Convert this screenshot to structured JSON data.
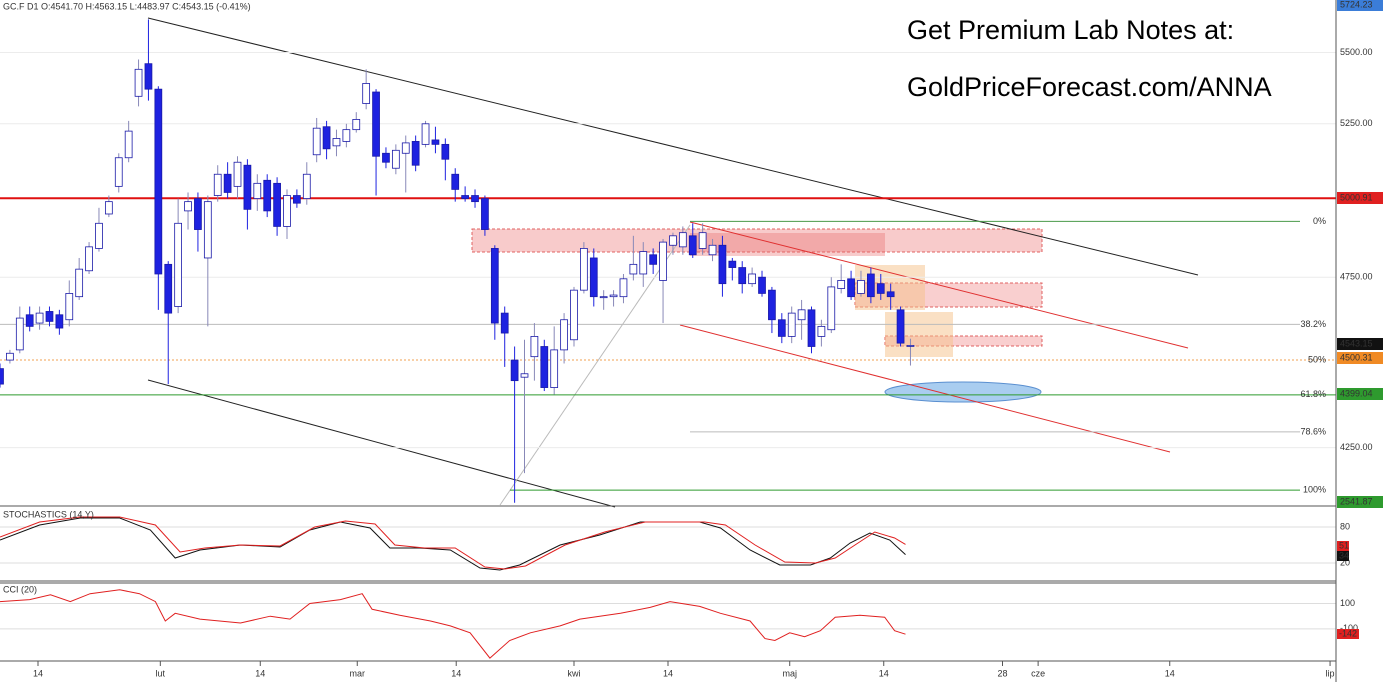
{
  "header": "GC.F  D1  O:4541.70  H:4563.15  L:4483.97  C:4543.15 (-0.41%)",
  "promo": [
    "Get Premium Lab Notes at:",
    "GoldPriceForecast.com/ANNA"
  ],
  "chart_data": [
    {
      "type": "candlestick",
      "log_scale": true,
      "grid": true,
      "up_color": "#ffffff",
      "down_color": "#1e22e0",
      "edge_color": "#1a1aa8",
      "ylim": [
        4094,
        5662
      ],
      "yticks": [
        {
          "value": 5500,
          "label": "5500.00"
        },
        {
          "value": 5250,
          "label": "5250.00"
        },
        {
          "value": 4750,
          "label": "4750.00"
        },
        {
          "value": 4250,
          "label": "4250.00"
        }
      ],
      "xlim": [
        0,
        135
      ],
      "xticks": [
        {
          "value": 3.84,
          "label": "14"
        },
        {
          "value": 16.2,
          "label": "lut"
        },
        {
          "value": 26.3,
          "label": "14"
        },
        {
          "value": 36.1,
          "label": "mar"
        },
        {
          "value": 46.1,
          "label": "14"
        },
        {
          "value": 58,
          "label": "kwi"
        },
        {
          "value": 67.5,
          "label": "14"
        },
        {
          "value": 79.8,
          "label": "maj"
        },
        {
          "value": 89.3,
          "label": "14"
        },
        {
          "value": 101.3,
          "label": "28"
        },
        {
          "value": 104.9,
          "label": "cze"
        },
        {
          "value": 118.2,
          "label": "14"
        },
        {
          "value": 134.4,
          "label": "lip"
        }
      ],
      "open": [
        4475,
        4500,
        4530,
        4635,
        4610,
        4645,
        4635,
        4620,
        4690,
        4770,
        4840,
        4950,
        5040,
        5135,
        5345,
        5460,
        5370,
        4790,
        4660,
        4960,
        5000,
        4810,
        5010,
        5080,
        5040,
        5110,
        5000,
        5060,
        5050,
        4910,
        5010,
        5000,
        5145,
        5240,
        5175,
        5190,
        5230,
        5320,
        5360,
        5150,
        5100,
        5150,
        5190,
        5180,
        5195,
        5180,
        5080,
        5010,
        5010,
        5000,
        4840,
        4640,
        4500,
        4450,
        4510,
        4540,
        4420,
        4530,
        4560,
        4710,
        4810,
        4688,
        4690,
        4690,
        4760,
        4760,
        4820,
        4740,
        4850,
        4845,
        4880,
        4840,
        4820,
        4850,
        4800,
        4780,
        4730,
        4750,
        4710,
        4620,
        4570,
        4620,
        4650,
        4570,
        4590,
        4715,
        4745,
        4700,
        4760,
        4730,
        4705,
        4650,
        4541.7
      ],
      "high": [
        4490,
        4530,
        4660,
        4660,
        4660,
        4660,
        4650,
        4740,
        4810,
        4860,
        4970,
        5010,
        5150,
        5260,
        5475,
        5620,
        5380,
        4800,
        5000,
        5020,
        5020,
        5010,
        5110,
        5120,
        5140,
        5130,
        5080,
        5080,
        5070,
        5030,
        5030,
        5120,
        5270,
        5260,
        5230,
        5250,
        5290,
        5440,
        5370,
        5170,
        5180,
        5210,
        5210,
        5260,
        5240,
        5200,
        5100,
        5040,
        5030,
        5010,
        4850,
        4660,
        4540,
        4560,
        4610,
        4560,
        4600,
        4640,
        4720,
        4860,
        4840,
        4710,
        4710,
        4760,
        4880,
        4860,
        4840,
        4870,
        4890,
        4910,
        4920,
        4920,
        4870,
        4880,
        4810,
        4800,
        4780,
        4770,
        4720,
        4640,
        4660,
        4680,
        4660,
        4620,
        4750,
        4790,
        4770,
        4770,
        4780,
        4760,
        4730,
        4660,
        4563.15
      ],
      "low": [
        4420,
        4490,
        4520,
        4585,
        4590,
        4600,
        4575,
        4600,
        4680,
        4760,
        4830,
        4940,
        5020,
        5120,
        5310,
        5330,
        4650,
        4430,
        4640,
        4900,
        4830,
        4600,
        4990,
        5000,
        5000,
        4900,
        4960,
        4940,
        4880,
        4870,
        4970,
        4980,
        5120,
        5130,
        5140,
        5170,
        5220,
        5300,
        5010,
        5100,
        5080,
        5020,
        5090,
        5170,
        5150,
        5060,
        4990,
        4990,
        4970,
        4880,
        4560,
        4480,
        4100,
        4180,
        4440,
        4410,
        4400,
        4490,
        4540,
        4700,
        4660,
        4650,
        4660,
        4670,
        4740,
        4720,
        4760,
        4610,
        4820,
        4820,
        4810,
        4820,
        4800,
        4690,
        4740,
        4700,
        4720,
        4690,
        4580,
        4550,
        4550,
        4560,
        4520,
        4540,
        4580,
        4700,
        4680,
        4690,
        4670,
        4680,
        4650,
        4540,
        4483.97
      ],
      "close": [
        4430,
        4520,
        4625,
        4600,
        4640,
        4615,
        4595,
        4700,
        4775,
        4845,
        4920,
        4990,
        5135,
        5225,
        5440,
        5370,
        4760,
        4640,
        4920,
        4990,
        4900,
        4990,
        5080,
        5020,
        5120,
        4965,
        5050,
        4960,
        4910,
        5010,
        4985,
        5080,
        5235,
        5165,
        5200,
        5230,
        5265,
        5390,
        5140,
        5120,
        5160,
        5185,
        5110,
        5250,
        5180,
        5130,
        5030,
        5000,
        4990,
        4900,
        4610,
        4580,
        4440,
        4460,
        4570,
        4420,
        4530,
        4620,
        4710,
        4840,
        4690,
        4690,
        4695,
        4745,
        4790,
        4830,
        4790,
        4860,
        4880,
        4890,
        4820,
        4890,
        4850,
        4730,
        4780,
        4730,
        4760,
        4700,
        4620,
        4570,
        4640,
        4650,
        4540,
        4600,
        4720,
        4740,
        4690,
        4740,
        4690,
        4700,
        4690,
        4550,
        4543.15
      ],
      "fib_levels": [
        {
          "label": "0%",
          "value": 4926
        },
        {
          "label": "38.2%",
          "value": 4606
        },
        {
          "label": "50%",
          "value": 4500.31
        },
        {
          "label": "61.8%",
          "value": 4399.04
        },
        {
          "label": "78.6%",
          "value": 4294
        },
        {
          "label": "100%",
          "value": 4134
        }
      ],
      "price_tags": [
        {
          "value": 5724.23,
          "color": "#3b7dd8"
        },
        {
          "value": 5000.91,
          "color": "#e02020"
        },
        {
          "value": 4543.15,
          "color": "#111111"
        },
        {
          "value": 4500.31,
          "color": "#f08a24"
        },
        {
          "value": 4399.04,
          "color": "#2e9a2e"
        },
        {
          "value": 2541.87,
          "color": "#2e9a2e"
        }
      ]
    },
    {
      "type": "line",
      "title": "STOCHASTICS (14,Y)",
      "ylim": [
        -8.3,
        111.7
      ],
      "yticks": [
        80,
        20
      ],
      "grid": true,
      "series": [
        {
          "color": "#111111",
          "x": [
            0,
            4,
            8.1,
            12.1,
            15.2,
            17.7,
            20.2,
            24.3,
            28.3,
            31.3,
            34.4,
            37.4,
            39.4,
            42.4,
            45.5,
            48.5,
            50.5,
            52.5,
            56.6,
            60.6,
            64.7,
            70.7,
            72.8,
            75.8,
            78.8,
            81.9,
            83.9,
            85.9,
            87.9,
            89.9,
            91.5
          ],
          "values": [
            58.3,
            83.3,
            95,
            95,
            75,
            28.3,
            41.7,
            50,
            46.7,
            75,
            88.3,
            78.3,
            45,
            45,
            41.7,
            11.7,
            8.3,
            16.7,
            50,
            66.7,
            88.3,
            88.3,
            78.3,
            41.7,
            16.7,
            16.7,
            28.3,
            53.3,
            70,
            58.3,
            34
          ]
        },
        {
          "color": "#e02020",
          "x": [
            0,
            4,
            8.1,
            12.1,
            15.7,
            18.2,
            20.7,
            24.3,
            28.3,
            31.8,
            34.9,
            37.9,
            39.9,
            42.9,
            46,
            49,
            51,
            53.1,
            57.1,
            61.1,
            65.2,
            71.2,
            73.3,
            76.3,
            79.3,
            82.4,
            84.4,
            86.4,
            88.4,
            90.4,
            91.5
          ],
          "values": [
            63.3,
            88.3,
            96.7,
            96.7,
            83.3,
            38.3,
            45,
            50,
            48.3,
            80,
            90,
            85,
            50,
            45,
            45,
            13.3,
            10,
            15,
            50,
            71.7,
            88.3,
            88.3,
            83.3,
            50,
            21.7,
            20,
            28.3,
            50,
            71.7,
            61.7,
            51
          ]
        }
      ]
    },
    {
      "type": "line",
      "title": "CCI (20)",
      "ylim": [
        -346,
        246
      ],
      "yticks": [
        100,
        -100
      ],
      "grid": true,
      "series": [
        {
          "color": "#e02020",
          "x": [
            0,
            3,
            5.1,
            7.1,
            9.1,
            12.1,
            14.1,
            15.7,
            16.7,
            17.7,
            20.2,
            24.3,
            27.3,
            29.3,
            31.3,
            34.4,
            36.6,
            37.6,
            40.4,
            43.5,
            45.5,
            47.5,
            49.5,
            51.5,
            53.6,
            56.6,
            58.6,
            62.7,
            65.7,
            67.7,
            70.7,
            72.8,
            75.8,
            77.3,
            78.3,
            79.8,
            81.3,
            82.9,
            84.4,
            86.9,
            89.4,
            90.4,
            91.5
          ],
          "values": [
            115,
            131,
            169,
            115,
            177,
            208,
            177,
            115,
            -38,
            23,
            -23,
            -54,
            0,
            -23,
            100,
            131,
            177,
            54,
            8,
            -38,
            -77,
            -131,
            -331,
            -192,
            -131,
            -77,
            -23,
            23,
            69,
            115,
            77,
            23,
            -38,
            -177,
            -192,
            -131,
            -162,
            -115,
            -8,
            8,
            -8,
            -115,
            -142
          ]
        }
      ]
    }
  ]
}
